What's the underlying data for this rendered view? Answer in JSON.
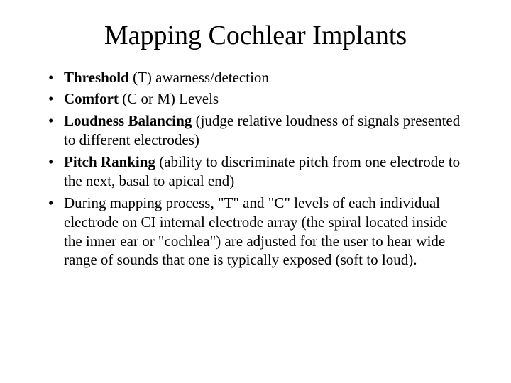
{
  "colors": {
    "background": "#ffffff",
    "text": "#000000"
  },
  "typography": {
    "family": "Times New Roman",
    "title_fontsize_pt": 38,
    "body_fontsize_pt": 21,
    "line_height": 1.28
  },
  "title": "Mapping Cochlear Implants",
  "bullets": [
    {
      "bold": "Threshold",
      "rest": " (T) awarness/detection"
    },
    {
      "bold": "Comfort",
      "rest": " (C or M) Levels"
    },
    {
      "bold": "Loudness Balancing",
      "rest": " (judge relative loudness of signals presented to different electrodes)"
    },
    {
      "bold": "Pitch Ranking",
      "rest": " (ability to discriminate pitch from one electrode to the next, basal to apical end)"
    },
    {
      "bold": "",
      "rest": "During mapping process, \"T\" and \"C\" levels of each individual electrode on CI internal electrode array (the spiral located inside the inner ear or \"cochlea\") are adjusted for the user to hear wide range of sounds that one is typically exposed (soft to loud)."
    }
  ]
}
